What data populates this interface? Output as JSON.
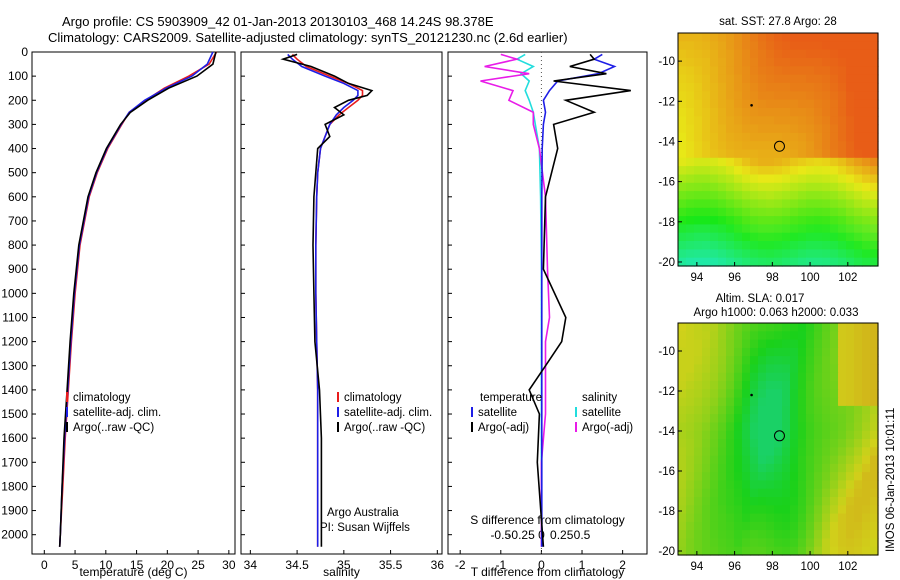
{
  "header": {
    "line1": "Argo profile: CS 5903909_42 01-Jan-2013 20130103_468 14.24S 98.378E",
    "line2": "Climatology: CARS2009. Satellite-adjusted climatology: synTS_20121230.nc (2.6d earlier)"
  },
  "colors": {
    "climatology": "#e81c1c",
    "satellite": "#1e1ee6",
    "argo": "#000000",
    "sal_sat": "#22dddd",
    "sal_argo": "#e81ce8"
  },
  "chart_data": [
    {
      "type": "line",
      "xlabel": "temperature (deg C)",
      "ylabel": "",
      "xlim": [
        -2,
        31
      ],
      "ylim": [
        2080,
        0
      ],
      "xticks": [
        "0",
        "5",
        "10",
        "15",
        "20",
        "25",
        "30"
      ],
      "yticks": [
        "0",
        "100",
        "200",
        "300",
        "400",
        "500",
        "600",
        "700",
        "800",
        "900",
        "1000",
        "1100",
        "1200",
        "1300",
        "1400",
        "1500",
        "1600",
        "1700",
        "1800",
        "1900",
        "2000"
      ],
      "legend": [
        "climatology",
        "satellite-adj. clim.",
        "Argo(..raw -QC)"
      ],
      "depth": [
        0,
        50,
        100,
        150,
        200,
        250,
        300,
        400,
        500,
        600,
        800,
        1000,
        1200,
        1400,
        1600,
        1800,
        2000,
        2050
      ],
      "series": [
        {
          "name": "climatology",
          "values": [
            28,
            26.8,
            23.5,
            19.5,
            16.5,
            13.8,
            12.6,
            10.3,
            8.6,
            7.3,
            5.8,
            5.0,
            4.4,
            3.9,
            3.4,
            3.0,
            2.6,
            2.5
          ]
        },
        {
          "name": "satellite-adj. clim.",
          "values": [
            27.4,
            26.5,
            24,
            19.8,
            16.3,
            13.8,
            12.5,
            10.2,
            8.5,
            7.2,
            5.7,
            4.9,
            4.3,
            3.8,
            3.3,
            2.9,
            2.6,
            2.5
          ]
        },
        {
          "name": "Argo(..raw -QC)",
          "values": [
            27.9,
            27.4,
            24.8,
            20.2,
            16.8,
            14.0,
            12.4,
            10.1,
            8.4,
            7.1,
            5.6,
            4.8,
            4.2,
            3.7,
            3.2,
            2.9,
            2.6,
            2.5
          ]
        }
      ]
    },
    {
      "type": "line",
      "xlabel": "salinity",
      "xlim": [
        33.9,
        36.05
      ],
      "ylim": [
        2080,
        0
      ],
      "xticks": [
        "34",
        "34.5",
        "35",
        "35.5",
        "36"
      ],
      "legend": [
        "climatology",
        "satellite-adj. clim.",
        "Argo(..raw -QC)"
      ],
      "annotations": [
        "Argo Australia",
        "PI: Susan Wijffels"
      ],
      "depth": [
        10,
        30,
        60,
        100,
        130,
        160,
        180,
        200,
        230,
        260,
        300,
        350,
        400,
        500,
        600,
        800,
        1000,
        1200,
        1400,
        1600,
        1800,
        2000,
        2050
      ],
      "series": [
        {
          "name": "climatology",
          "values": [
            34.45,
            34.5,
            34.6,
            34.85,
            35.05,
            35.2,
            35.2,
            35.15,
            35.05,
            34.95,
            34.85,
            34.8,
            34.75,
            34.72,
            34.71,
            34.7,
            34.7,
            34.71,
            34.72,
            34.72,
            34.72,
            34.72,
            34.72
          ]
        },
        {
          "name": "satellite-adj. clim.",
          "values": [
            34.4,
            34.45,
            34.55,
            34.8,
            35.0,
            35.15,
            35.15,
            35.1,
            35.0,
            34.92,
            34.85,
            34.8,
            34.75,
            34.72,
            34.71,
            34.7,
            34.7,
            34.71,
            34.72,
            34.72,
            34.72,
            34.72,
            34.72
          ]
        },
        {
          "name": "Argo(..raw -QC)",
          "values": [
            34.5,
            34.35,
            34.65,
            34.9,
            35.05,
            35.3,
            35.25,
            35.05,
            34.9,
            35.0,
            34.8,
            34.85,
            34.72,
            34.7,
            34.68,
            34.67,
            34.68,
            34.69,
            34.74,
            34.76,
            34.76,
            34.76,
            34.76
          ]
        }
      ]
    },
    {
      "type": "line",
      "xlabel": "T difference from climatology",
      "x2label": "S difference from climatology",
      "xlim": [
        -2.3,
        2.6
      ],
      "ylim": [
        2080,
        0
      ],
      "xticks": [
        "-2",
        "-1",
        "0",
        "1",
        "2"
      ],
      "x2ticks": [
        "-0.5",
        "-0.25",
        "0",
        "0.25",
        "0.5"
      ],
      "legend_temperature": [
        "temperature",
        "satellite",
        "Argo(-adj)"
      ],
      "legend_salinity": [
        "salinity",
        "satellite",
        "Argo(-adj)"
      ],
      "depth": [
        10,
        30,
        60,
        90,
        120,
        160,
        200,
        250,
        300,
        400,
        600,
        900,
        1100,
        1200,
        1300,
        1400,
        1500,
        1700,
        2050
      ],
      "series": [
        {
          "name": "T satellite",
          "values": [
            1.5,
            1.3,
            1.8,
            1.4,
            0.4,
            0.2,
            0.05,
            0.1,
            0.05,
            0.02,
            0.01,
            0.01,
            0.01,
            0.01,
            0.01,
            0.01,
            0.01,
            0.01,
            0.01
          ]
        },
        {
          "name": "T Argo(-adj)",
          "values": [
            1.2,
            1.3,
            0.7,
            1.6,
            0.3,
            2.2,
            0.6,
            1.3,
            0.3,
            0.4,
            0.1,
            0.05,
            0.6,
            0.5,
            0.1,
            -0.3,
            -0.05,
            -0.1,
            0.05
          ]
        },
        {
          "name": "S satellite",
          "values": [
            -0.4,
            -0.6,
            -0.2,
            -0.5,
            -0.3,
            -0.4,
            -0.3,
            -0.2,
            -0.15,
            -0.05,
            -0.02,
            0.0,
            0.0,
            0.0,
            0.0,
            0.0,
            0.0,
            0.0,
            0.0
          ]
        },
        {
          "name": "S Argo(-adj)",
          "values": [
            -1.0,
            -0.6,
            -1.4,
            -0.3,
            -1.5,
            -0.7,
            -0.8,
            -0.2,
            -0.2,
            -0.05,
            0.1,
            0.15,
            0.2,
            0.1,
            0.1,
            0.1,
            0.1,
            0.0,
            0.0
          ]
        }
      ]
    },
    {
      "type": "heatmap",
      "title": "sat. SST: 27.8 Argo: 28",
      "xticks": [
        "94",
        "96",
        "98",
        "100",
        "102"
      ],
      "yticks": [
        "-10",
        "-12",
        "-14",
        "-16",
        "-18",
        "-20"
      ],
      "xlim": [
        93,
        103.6
      ],
      "ylim": [
        -20.2,
        -8.6
      ],
      "argo_position": [
        98.378,
        -14.24
      ],
      "previous_position": [
        96.9,
        -12.2
      ]
    },
    {
      "type": "heatmap",
      "title": "Altim. SLA: 0.017",
      "subtitle": "Argo h1000: 0.063 h2000: 0.033",
      "xticks": [
        "94",
        "96",
        "98",
        "100",
        "102"
      ],
      "yticks": [
        "-10",
        "-12",
        "-14",
        "-16",
        "-18",
        "-20"
      ],
      "xlim": [
        93,
        103.6
      ],
      "ylim": [
        -20.2,
        -8.6
      ],
      "argo_position": [
        98.378,
        -14.24
      ],
      "previous_position": [
        96.9,
        -12.2
      ]
    }
  ],
  "stamp": "IMOS 06-Jan-2013 10:01:11"
}
